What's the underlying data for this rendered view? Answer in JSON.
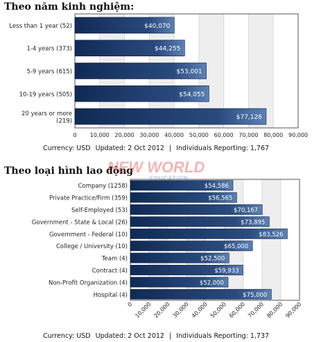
{
  "watermark": {
    "main": "NEW WORLD",
    "sub": "EDUCATION"
  },
  "colors": {
    "bar_dark": "#102a55",
    "bar_light": "#5b82b5",
    "label": "#ffffff",
    "grid": "#d9d9d9",
    "band": "#eeeeee",
    "frame": "#555555",
    "wm_red": "#e03a3a",
    "wm_blue": "#2a5fa8"
  },
  "chart1": {
    "section_title": "Theo năm kinh nghiệm:",
    "footer": {
      "currency": "Currency:  USD",
      "updated": "Updated:  2 Oct 2012",
      "sep": "|",
      "reporting": "Individuals Reporting:  1,767"
    }
  },
  "chart2": {
    "section_title": "Theo loại hình lao động",
    "footer": {
      "currency": "Currency:  USD",
      "updated": "Updated:  2 Oct 2012",
      "sep": "|",
      "reporting": "Individuals Reporting:  1,737"
    }
  },
  "chart_data": [
    {
      "type": "bar",
      "orientation": "horizontal",
      "categories": [
        [
          "Less than 1 year (52)"
        ],
        [
          "1-4 years (373)"
        ],
        [
          "5-9 years (615)"
        ],
        [
          "10-19 years (505)"
        ],
        [
          "20 years or more",
          "(219)"
        ]
      ],
      "values": [
        40070,
        44255,
        53001,
        54055,
        77126
      ],
      "value_labels": [
        "$40,070",
        "$44,255",
        "$53,001",
        "$54,055",
        "$77,126"
      ],
      "xlim": [
        0,
        90000
      ],
      "ticks": [
        0,
        10000,
        20000,
        30000,
        40000,
        50000,
        60000,
        70000,
        80000,
        90000
      ],
      "tick_labels": [
        "0",
        "10,000",
        "20,000",
        "30,000",
        "40,000",
        "50,000",
        "60,000",
        "70,000",
        "80,000",
        "90,000"
      ],
      "grid": true
    },
    {
      "type": "bar",
      "orientation": "horizontal",
      "categories": [
        [
          "Company (1258)"
        ],
        [
          "Private Practice/Firm (359)"
        ],
        [
          "Self-Employed (53)"
        ],
        [
          "Government - State & Local (26)"
        ],
        [
          "Government - Federal (10)"
        ],
        [
          "College / University (10)"
        ],
        [
          "Team (4)"
        ],
        [
          "Contract (4)"
        ],
        [
          "Non-Profit Organization (4)"
        ],
        [
          "Hospital (4)"
        ]
      ],
      "values": [
        54586,
        56565,
        70167,
        73895,
        83526,
        65000,
        52500,
        59933,
        52000,
        75000
      ],
      "value_labels": [
        "$54,586",
        "$56,565",
        "$70,167",
        "$73,895",
        "$83,526",
        "$65,000",
        "$52,500",
        "$59,933",
        "$52,000",
        "$75,000"
      ],
      "xlim": [
        0,
        90000
      ],
      "ticks": [
        0,
        10000,
        20000,
        30000,
        40000,
        50000,
        60000,
        70000,
        80000,
        90000
      ],
      "tick_labels": [
        "0",
        "10,000",
        "20,000",
        "30,000",
        "40,000",
        "50,000",
        "60,000",
        "70,000",
        "80,000",
        "90,000"
      ],
      "grid": true
    }
  ]
}
